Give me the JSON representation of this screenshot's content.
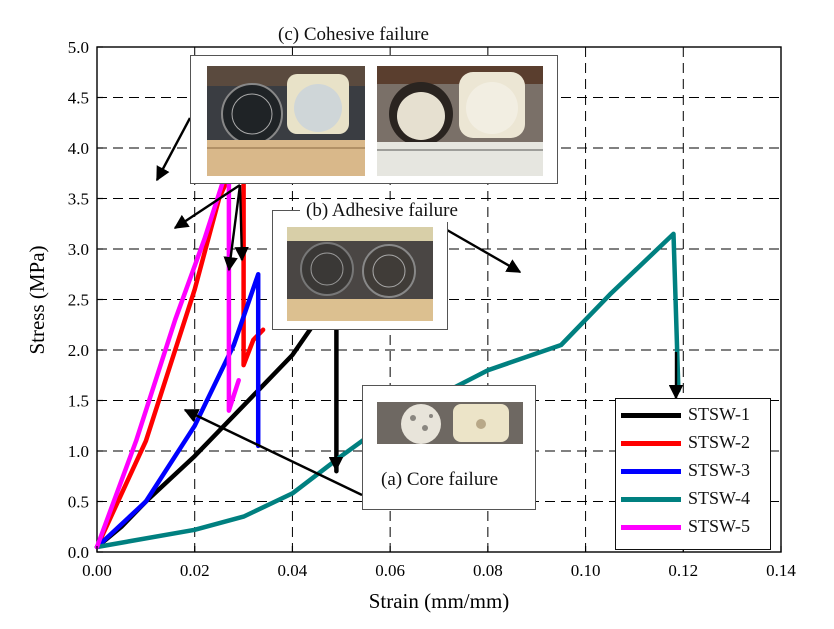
{
  "chart_data": {
    "type": "line",
    "title": "",
    "xlabel": "Strain (mm/mm)",
    "ylabel": "Stress (MPa)",
    "xlim": [
      0.0,
      0.14
    ],
    "ylim": [
      0.0,
      5.0
    ],
    "x_ticks": [
      "0.00",
      "0.02",
      "0.04",
      "0.06",
      "0.08",
      "0.10",
      "0.12",
      "0.14"
    ],
    "y_ticks": [
      "0.0",
      "0.5",
      "1.0",
      "1.5",
      "2.0",
      "2.5",
      "3.0",
      "3.5",
      "4.0",
      "4.5",
      "5.0"
    ],
    "grid": "dashed",
    "legend_position": "bottom-right",
    "series": [
      {
        "name": "STSW-1",
        "color": "#000000",
        "x": [
          0.0,
          0.005,
          0.01,
          0.02,
          0.03,
          0.04,
          0.045,
          0.049,
          0.049
        ],
        "y": [
          0.05,
          0.25,
          0.5,
          0.95,
          1.45,
          1.95,
          2.3,
          2.45,
          0.8
        ]
      },
      {
        "name": "STSW-2",
        "color": "#ff0000",
        "x": [
          0.0,
          0.01,
          0.02,
          0.025,
          0.03,
          0.03,
          0.032,
          0.034
        ],
        "y": [
          0.05,
          1.1,
          2.6,
          3.5,
          4.05,
          1.85,
          2.1,
          2.2
        ]
      },
      {
        "name": "STSW-3",
        "color": "#0000ff",
        "x": [
          0.0,
          0.01,
          0.02,
          0.028,
          0.033,
          0.033
        ],
        "y": [
          0.05,
          0.5,
          1.25,
          2.05,
          2.75,
          1.05
        ]
      },
      {
        "name": "STSW-4",
        "color": "#008080",
        "x": [
          0.0,
          0.02,
          0.03,
          0.04,
          0.05,
          0.06,
          0.07,
          0.08,
          0.095,
          0.105,
          0.118,
          0.119
        ],
        "y": [
          0.05,
          0.22,
          0.35,
          0.58,
          0.95,
          1.3,
          1.55,
          1.8,
          2.05,
          2.55,
          3.15,
          1.6
        ]
      },
      {
        "name": "STSW-5",
        "color": "#ff00ff",
        "x": [
          0.0,
          0.008,
          0.016,
          0.022,
          0.026,
          0.027,
          0.027,
          0.029
        ],
        "y": [
          0.05,
          1.1,
          2.3,
          3.1,
          3.7,
          3.85,
          1.4,
          1.7
        ]
      }
    ],
    "annotations": [
      {
        "text": "(c) Cohesive failure"
      },
      {
        "text": "(b) Adhesive failure"
      },
      {
        "text": "(a) Core failure"
      }
    ]
  }
}
